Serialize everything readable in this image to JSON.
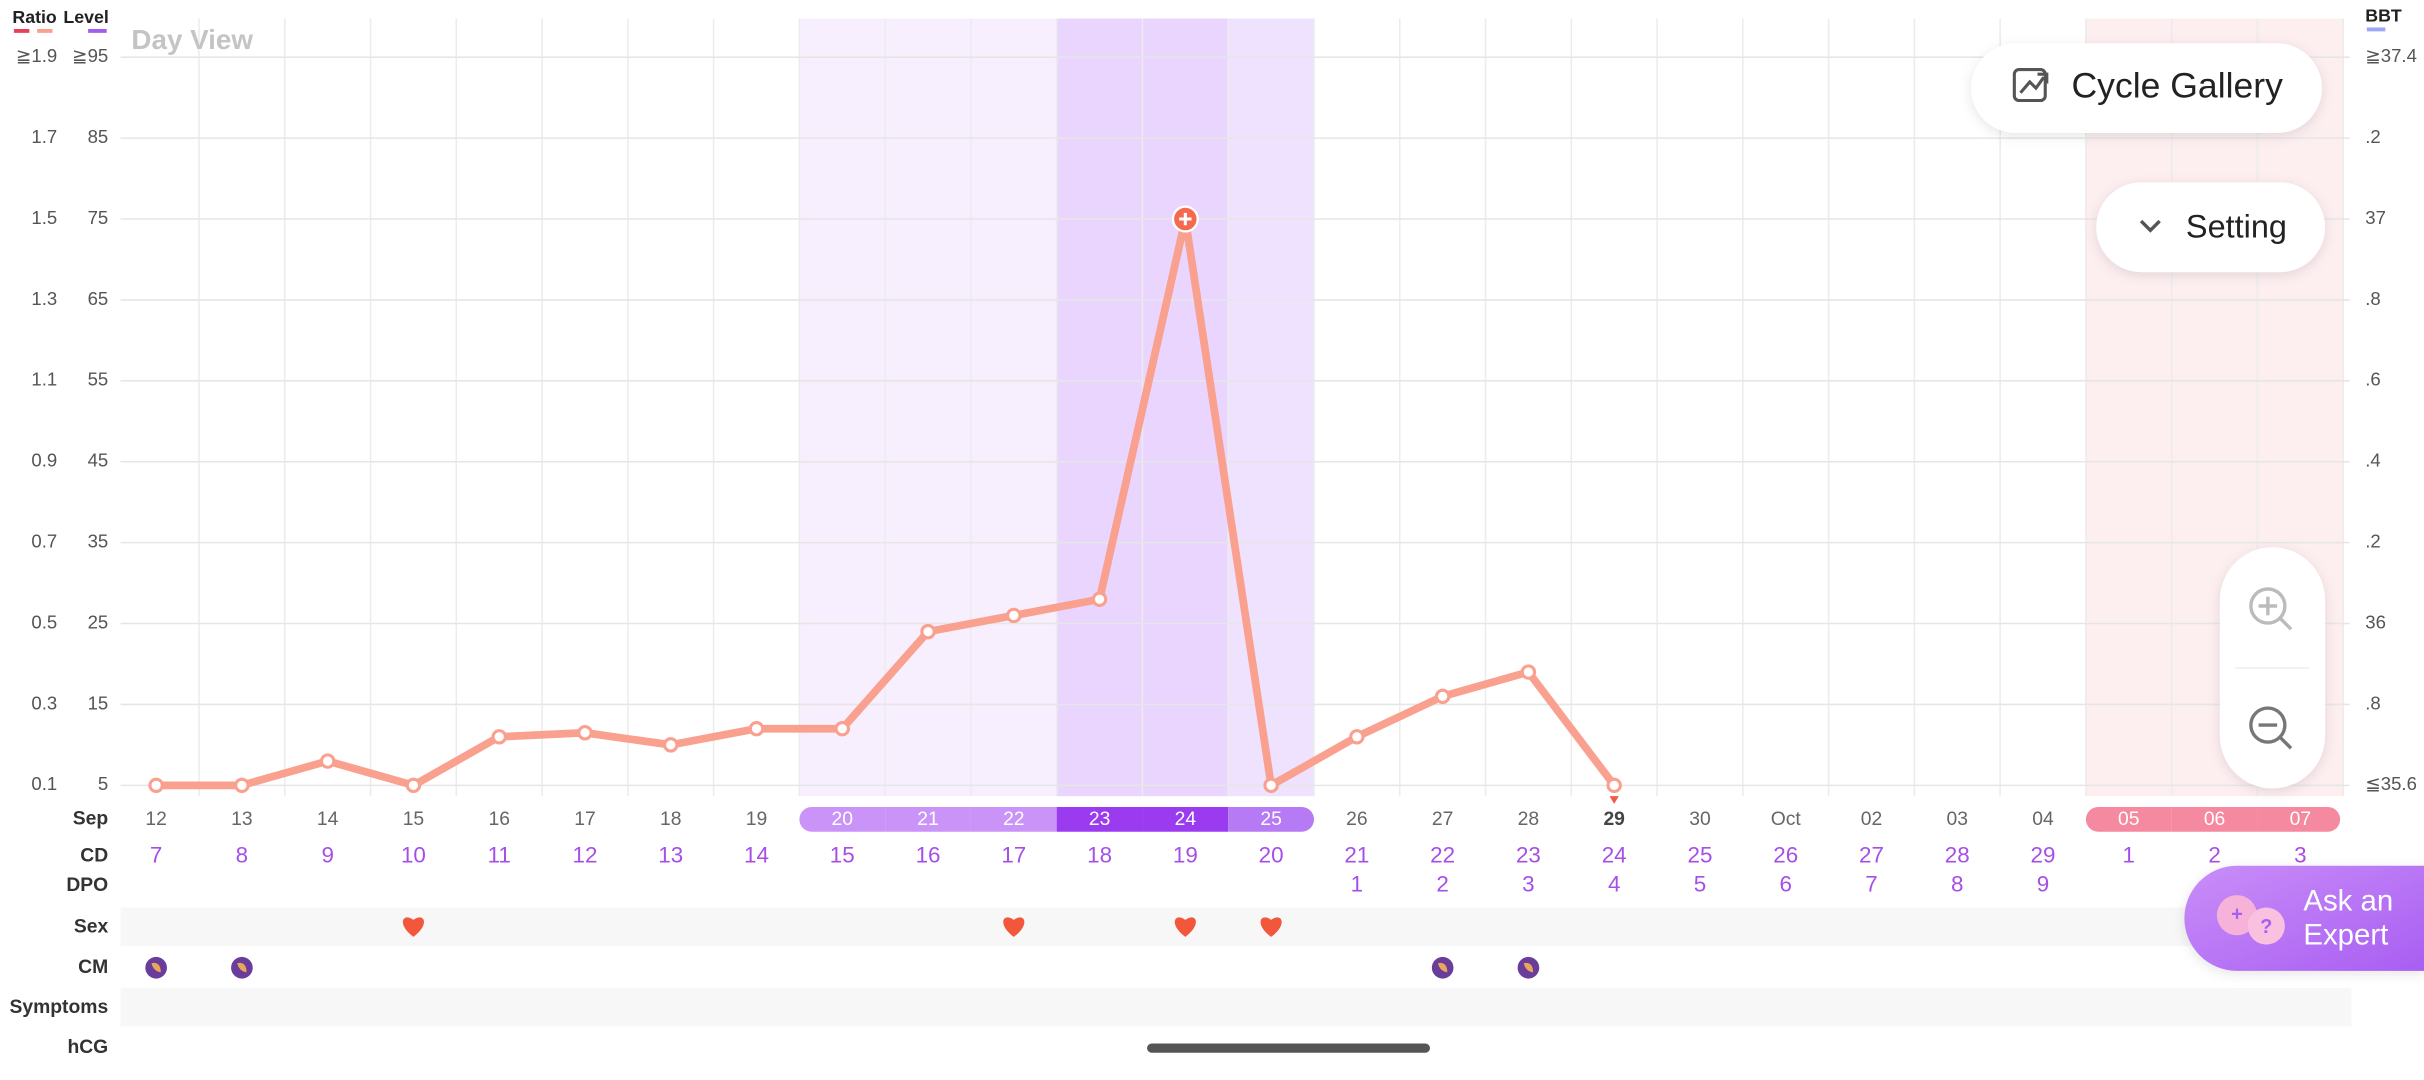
{
  "chart_data": {
    "type": "line",
    "title": "Day View",
    "month": "Sep",
    "categories": [
      "12",
      "13",
      "14",
      "15",
      "16",
      "17",
      "18",
      "19",
      "20",
      "21",
      "22",
      "23",
      "24",
      "25",
      "26",
      "27",
      "28",
      "29",
      "30",
      "Oct",
      "02",
      "03",
      "04",
      "05",
      "06",
      "07"
    ],
    "today": "29",
    "ratio_axis": {
      "label": "Ratio",
      "colors": [
        "#e8405a",
        "#f9a08f"
      ],
      "ylim": [
        0.1,
        1.9
      ],
      "yticks": [
        0.1,
        0.3,
        0.5,
        0.7,
        0.9,
        1.1,
        1.3,
        1.5,
        1.7,
        {
          "value": 1.9,
          "label": "≧1.9"
        }
      ]
    },
    "level_axis": {
      "label": "Level",
      "color": "#a25df0",
      "ylim": [
        5,
        95
      ],
      "yticks": [
        5,
        15,
        25,
        35,
        45,
        55,
        65,
        75,
        85,
        {
          "value": 95,
          "label": "≧95"
        }
      ]
    },
    "bbt_axis": {
      "label": "BBT",
      "color": "#9aa7f5",
      "ylim": [
        35.6,
        37.4
      ],
      "yticks": [
        {
          "value": 35.6,
          "label": "≦35.6"
        },
        {
          "value": 35.8,
          "label": ".8"
        },
        36,
        {
          "value": 36.2,
          "label": ".2"
        },
        {
          "value": 36.4,
          "label": ".4"
        },
        {
          "value": 36.6,
          "label": ".6"
        },
        {
          "value": 36.8,
          "label": ".8"
        },
        37,
        {
          "value": 37.2,
          "label": ".2"
        },
        {
          "value": 37.4,
          "label": "≧37.4"
        }
      ]
    },
    "level": {
      "color": "#f9a08f",
      "peak_color": "#f56a4f",
      "values": [
        5,
        5,
        8,
        5,
        11,
        11.5,
        10,
        12,
        12,
        24,
        26,
        28,
        75,
        5,
        11,
        16,
        19,
        5,
        null,
        null,
        null,
        null,
        null,
        null,
        null,
        null
      ]
    },
    "cd": [
      7,
      8,
      9,
      10,
      11,
      12,
      13,
      14,
      15,
      16,
      17,
      18,
      19,
      20,
      21,
      22,
      23,
      24,
      25,
      26,
      27,
      28,
      29,
      1,
      2,
      3
    ],
    "dpo": [
      null,
      null,
      null,
      null,
      null,
      null,
      null,
      null,
      null,
      null,
      null,
      null,
      null,
      null,
      1,
      2,
      3,
      4,
      5,
      6,
      7,
      8,
      9,
      null,
      null,
      null
    ],
    "phases": [
      null,
      null,
      null,
      null,
      null,
      null,
      null,
      null,
      "fertile",
      "fertile",
      "fertile",
      "peak",
      "peak",
      "late",
      null,
      null,
      null,
      null,
      null,
      null,
      null,
      null,
      null,
      "period",
      "period",
      "period"
    ],
    "phase_colors": {
      "fertile": {
        "band": "#f7effe",
        "pill": "#c993f7"
      },
      "peak": {
        "band": "#ead5fe",
        "pill": "#9b3bf0"
      },
      "late": {
        "band": "#efe2fe",
        "pill": "#b57af4"
      },
      "period": {
        "band": "#fdeef0",
        "pill": "#f5899f"
      }
    },
    "row_labels": {
      "cd": "CD",
      "dpo": "DPO",
      "sex": "Sex",
      "cm": "CM",
      "symptoms": "Symptoms",
      "hcg": "hCG"
    },
    "sex": [
      false,
      false,
      false,
      true,
      false,
      false,
      false,
      false,
      false,
      false,
      true,
      false,
      true,
      true,
      false,
      false,
      false,
      false,
      false,
      false,
      false,
      false,
      false,
      false,
      false,
      false
    ],
    "cm": [
      true,
      true,
      false,
      false,
      false,
      false,
      false,
      false,
      false,
      false,
      false,
      false,
      false,
      false,
      false,
      true,
      true,
      false,
      false,
      false,
      false,
      false,
      false,
      false,
      false,
      false
    ],
    "buttons": {
      "gallery": "Cycle Gallery",
      "setting": "Setting",
      "ask": [
        "Ask an",
        "Expert"
      ]
    },
    "grid": true
  }
}
